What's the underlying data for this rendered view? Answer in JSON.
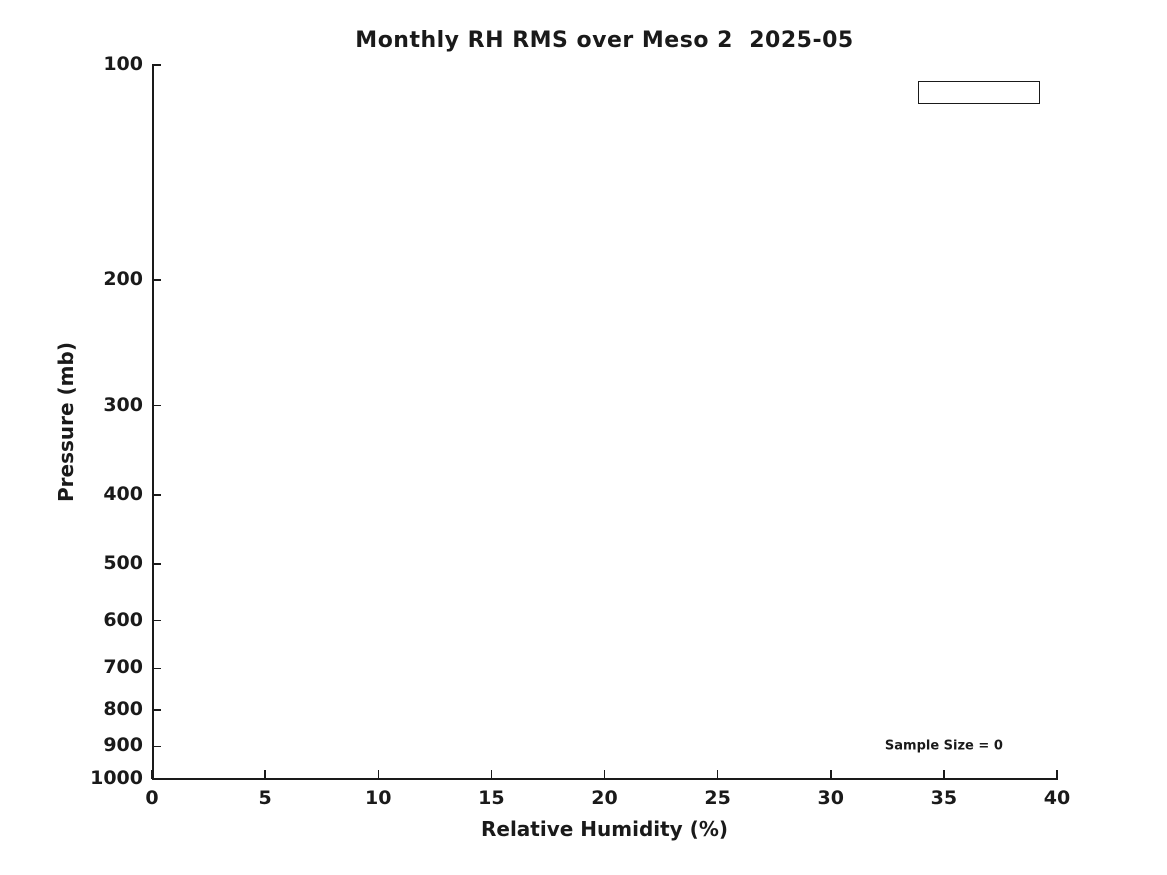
{
  "figure": {
    "title": "Monthly RH RMS over Meso 2  2025-05",
    "xlabel": "Relative Humidity (%)",
    "ylabel": "Pressure (mb)",
    "sample_size_text": "Sample Size = 0",
    "colors": {
      "foreground": "#1a1a1a",
      "background": "#ffffff"
    }
  },
  "chart_data": {
    "type": "line",
    "title": "Monthly RH RMS over Meso 2  2025-05",
    "xlabel": "Relative Humidity (%)",
    "ylabel": "Pressure (mb)",
    "xlim": [
      0,
      40
    ],
    "ylim": [
      1000,
      100
    ],
    "yscale": "log",
    "y_axis_inverted": true,
    "x_ticks": [
      0,
      5,
      10,
      15,
      20,
      25,
      30,
      35,
      40
    ],
    "y_ticks": [
      100,
      200,
      300,
      400,
      500,
      600,
      700,
      800,
      900,
      1000
    ],
    "series": [],
    "grid": false,
    "legend": {
      "visible": true,
      "position": "top-right",
      "entries": []
    },
    "annotations": [
      {
        "text": "Sample Size = 0",
        "x": 35,
        "y": 900
      }
    ],
    "sample_size": 0
  }
}
